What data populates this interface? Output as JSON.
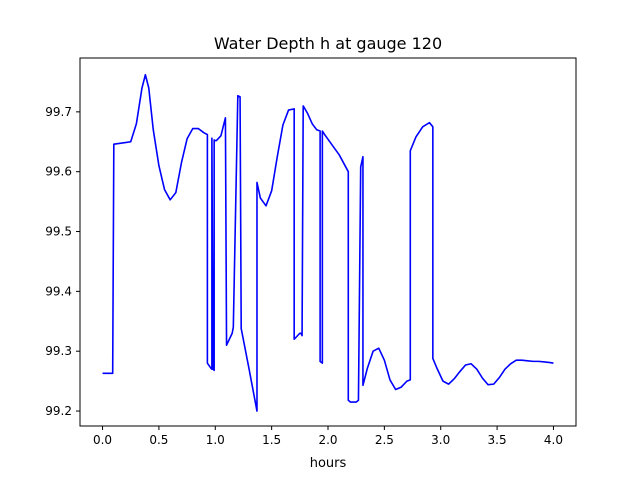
{
  "chart_data": {
    "type": "line",
    "title": "Water Depth h at gauge 120",
    "xlabel": "hours",
    "ylabel": "",
    "xlim": [
      -0.2,
      4.2
    ],
    "ylim": [
      99.175,
      99.79
    ],
    "xticks": [
      0.0,
      0.5,
      1.0,
      1.5,
      2.0,
      2.5,
      3.0,
      3.5,
      4.0
    ],
    "xtick_labels": [
      "0.0",
      "0.5",
      "1.0",
      "1.5",
      "2.0",
      "2.5",
      "3.0",
      "3.5",
      "4.0"
    ],
    "yticks": [
      99.2,
      99.3,
      99.4,
      99.5,
      99.6,
      99.7
    ],
    "ytick_labels": [
      "99.2",
      "99.3",
      "99.4",
      "99.5",
      "99.6",
      "99.7"
    ],
    "grid": false,
    "legend": "none",
    "series": [
      {
        "color": "#0000ff",
        "x": [
          0.0,
          0.09,
          0.1,
          0.25,
          0.3,
          0.35,
          0.38,
          0.41,
          0.45,
          0.5,
          0.55,
          0.6,
          0.65,
          0.7,
          0.75,
          0.8,
          0.85,
          0.9,
          0.93,
          0.93,
          0.96,
          0.97,
          0.97,
          0.98,
          0.99,
          0.99,
          1.0,
          1.01,
          1.05,
          1.09,
          1.1,
          1.1,
          1.15,
          1.16,
          1.2,
          1.22,
          1.23,
          1.3,
          1.37,
          1.37,
          1.4,
          1.45,
          1.5,
          1.55,
          1.6,
          1.65,
          1.7,
          1.7,
          1.75,
          1.76,
          1.77,
          1.78,
          1.82,
          1.86,
          1.9,
          1.93,
          1.93,
          1.95,
          1.95,
          1.97,
          2.1,
          2.18,
          2.18,
          2.2,
          2.25,
          2.27,
          2.29,
          2.31,
          2.31,
          2.35,
          2.4,
          2.45,
          2.5,
          2.55,
          2.6,
          2.65,
          2.7,
          2.73,
          2.73,
          2.78,
          2.84,
          2.9,
          2.93,
          2.93,
          2.97,
          3.02,
          3.07,
          3.12,
          3.17,
          3.22,
          3.27,
          3.32,
          3.37,
          3.42,
          3.47,
          3.52,
          3.57,
          3.62,
          3.67,
          3.72,
          3.77,
          3.82,
          3.87,
          3.92,
          3.97,
          4.0
        ],
        "values": [
          99.263,
          99.263,
          99.646,
          99.65,
          99.68,
          99.74,
          99.762,
          99.74,
          99.67,
          99.61,
          99.57,
          99.553,
          99.565,
          99.615,
          99.655,
          99.672,
          99.672,
          99.665,
          99.662,
          99.28,
          99.272,
          99.27,
          99.656,
          99.27,
          99.268,
          99.653,
          99.652,
          99.652,
          99.66,
          99.69,
          99.31,
          99.31,
          99.33,
          99.34,
          99.727,
          99.725,
          99.338,
          99.27,
          99.2,
          99.582,
          99.556,
          99.543,
          99.568,
          99.625,
          99.678,
          99.703,
          99.705,
          99.32,
          99.33,
          99.33,
          99.326,
          99.71,
          99.697,
          99.68,
          99.67,
          99.668,
          99.283,
          99.28,
          99.668,
          99.662,
          99.628,
          99.6,
          99.218,
          99.215,
          99.215,
          99.218,
          99.608,
          99.625,
          99.243,
          99.272,
          99.3,
          99.305,
          99.285,
          99.252,
          99.236,
          99.24,
          99.25,
          99.252,
          99.635,
          99.658,
          99.675,
          99.682,
          99.675,
          99.288,
          99.27,
          99.25,
          99.245,
          99.254,
          99.266,
          99.277,
          99.279,
          99.27,
          99.255,
          99.244,
          99.245,
          99.256,
          99.27,
          99.279,
          99.285,
          99.285,
          99.284,
          99.283,
          99.283,
          99.282,
          99.281,
          99.28
        ]
      }
    ]
  }
}
